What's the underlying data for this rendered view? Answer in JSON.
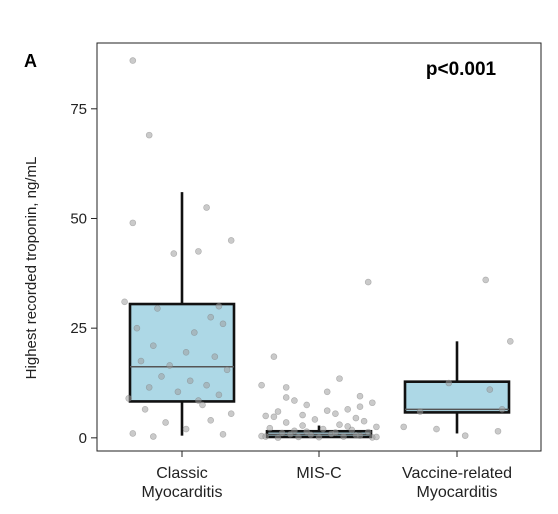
{
  "chart_data": {
    "type": "box",
    "panel_label": "A",
    "annotation": "p<0.001",
    "ylabel": "Highest recorded troponin, ng/mL",
    "xlabel": "",
    "ylim": [
      -3,
      90
    ],
    "yticks": [
      0,
      25,
      50,
      75
    ],
    "grid": false,
    "categories": [
      {
        "id": "classic",
        "lines": [
          "Classic",
          "Myocarditis"
        ]
      },
      {
        "id": "misc",
        "lines": [
          "MIS-C"
        ]
      },
      {
        "id": "vaccine",
        "lines": [
          "Vaccine-related",
          "Myocarditis"
        ]
      }
    ],
    "box_color": "#add8e6",
    "point_color": "#9e9e9e",
    "boxes": [
      {
        "category": "classic",
        "whisker_low": 0.5,
        "q1": 8.3,
        "median": 16.2,
        "q3": 30.5,
        "whisker_high": 56
      },
      {
        "category": "misc",
        "whisker_low": 0,
        "q1": 0.2,
        "median": 0.8,
        "q3": 1.5,
        "whisker_high": 2.8
      },
      {
        "category": "vaccine",
        "whisker_low": 1,
        "q1": 5.8,
        "median": 6.5,
        "q3": 12.8,
        "whisker_high": 22
      }
    ],
    "points": {
      "classic": [
        [
          -0.24,
          86
        ],
        [
          -0.16,
          69
        ],
        [
          0.12,
          52.5
        ],
        [
          0.24,
          45
        ],
        [
          0.08,
          42.5
        ],
        [
          -0.04,
          42
        ],
        [
          -0.24,
          49
        ],
        [
          -0.28,
          31
        ],
        [
          0.18,
          30
        ],
        [
          -0.12,
          29.5
        ],
        [
          0.14,
          27.5
        ],
        [
          0.2,
          26
        ],
        [
          -0.22,
          25
        ],
        [
          0.06,
          24
        ],
        [
          -0.14,
          21
        ],
        [
          0.02,
          19.5
        ],
        [
          0.16,
          18.5
        ],
        [
          -0.2,
          17.5
        ],
        [
          -0.06,
          16.5
        ],
        [
          0.22,
          15.5
        ],
        [
          -0.1,
          14
        ],
        [
          0.04,
          13
        ],
        [
          0.12,
          12
        ],
        [
          -0.16,
          11.5
        ],
        [
          -0.02,
          10.5
        ],
        [
          0.18,
          9.8
        ],
        [
          -0.26,
          9
        ],
        [
          0.08,
          8.5
        ],
        [
          0.1,
          7.5
        ],
        [
          -0.18,
          6.5
        ],
        [
          0.24,
          5.5
        ],
        [
          0.14,
          4
        ],
        [
          -0.08,
          3.5
        ],
        [
          -0.24,
          1
        ],
        [
          0.02,
          2
        ],
        [
          0.2,
          0.8
        ],
        [
          -0.14,
          0.3
        ]
      ],
      "misc": [
        [
          0.24,
          35.5
        ],
        [
          -0.22,
          18.5
        ],
        [
          0.1,
          13.5
        ],
        [
          -0.28,
          12
        ],
        [
          -0.16,
          11.5
        ],
        [
          0.04,
          10.5
        ],
        [
          0.2,
          9.5
        ],
        [
          -0.12,
          8.5
        ],
        [
          0.26,
          8
        ],
        [
          -0.06,
          7.5
        ],
        [
          0.14,
          6.5
        ],
        [
          -0.2,
          6
        ],
        [
          0.08,
          5.5
        ],
        [
          -0.26,
          5
        ],
        [
          0.18,
          4.5
        ],
        [
          -0.02,
          4.2
        ],
        [
          0.22,
          3.8
        ],
        [
          -0.16,
          3.5
        ],
        [
          0.1,
          3
        ],
        [
          -0.08,
          2.8
        ],
        [
          0.28,
          2.5
        ],
        [
          -0.24,
          2.2
        ],
        [
          0.02,
          2
        ],
        [
          0.16,
          1.8
        ],
        [
          -0.12,
          1.6
        ],
        [
          0.24,
          1.3
        ],
        [
          -0.18,
          1.1
        ],
        [
          0.06,
          0.9
        ],
        [
          -0.04,
          0.7
        ],
        [
          0.2,
          0.5
        ],
        [
          -0.28,
          0.4
        ],
        [
          0.12,
          0.3
        ],
        [
          -0.1,
          0.2
        ],
        [
          0.26,
          0.1
        ],
        [
          -0.2,
          0.05
        ],
        [
          0.0,
          0.15
        ],
        [
          0.18,
          0.6
        ],
        [
          -0.14,
          0.8
        ],
        [
          0.08,
          1.2
        ],
        [
          -0.06,
          1.4
        ],
        [
          0.28,
          0.2
        ],
        [
          -0.26,
          0.3
        ],
        [
          0.14,
          2.6
        ],
        [
          -0.22,
          4.8
        ],
        [
          0.04,
          6.2
        ],
        [
          -0.08,
          5.2
        ],
        [
          0.2,
          7.1
        ],
        [
          -0.16,
          9.2
        ]
      ],
      "vaccine": [
        [
          0.14,
          36
        ],
        [
          0.26,
          22
        ],
        [
          -0.04,
          12.5
        ],
        [
          0.16,
          11
        ],
        [
          -0.18,
          6
        ],
        [
          0.22,
          6.5
        ],
        [
          -0.1,
          2
        ],
        [
          0.2,
          1.5
        ],
        [
          -0.26,
          2.5
        ],
        [
          0.04,
          0.5
        ]
      ]
    }
  }
}
